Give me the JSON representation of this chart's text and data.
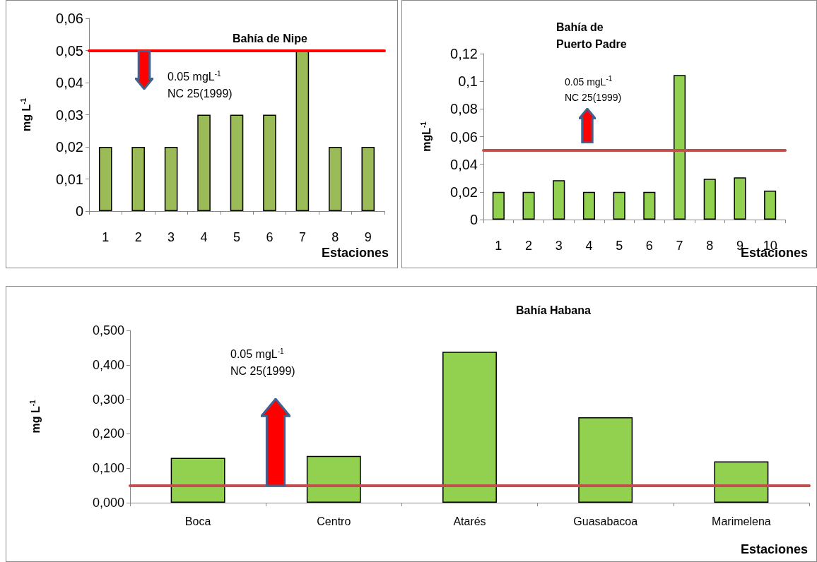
{
  "chart_data": [
    {
      "type": "bar",
      "title": "Bahía de Nipe",
      "ylabel": "mg L$^{-1}$",
      "xlabel": "Estaciones",
      "categories": [
        "1",
        "2",
        "3",
        "4",
        "5",
        "6",
        "7",
        "8",
        "9"
      ],
      "color": "#9bbb59",
      "values": [
        0.02,
        0.02,
        0.02,
        0.03,
        0.03,
        0.03,
        0.05,
        0.02,
        0.02
      ],
      "ylim": [
        0,
        0.06
      ],
      "yticks": [
        {
          "value": 0,
          "label": "0"
        },
        {
          "value": 0.01,
          "label": "0,01"
        },
        {
          "value": 0.02,
          "label": "0,02"
        },
        {
          "value": 0.03,
          "label": "0,03"
        },
        {
          "value": 0.04,
          "label": "0,04"
        },
        {
          "value": 0.05,
          "label": "0,05"
        },
        {
          "value": 0.06,
          "label": "0,06"
        }
      ],
      "ref_lines": [
        {
          "axis": "y",
          "value": 0.05,
          "color": "#ff0000"
        }
      ],
      "annotations": [
        "0.05 mgL$^{-1}$",
        "NC 25(1999)"
      ]
    },
    {
      "type": "bar",
      "title": "Bahía de Puerto Padre",
      "ylabel": "mgL$^{-1}$",
      "xlabel": "Estaciones",
      "categories": [
        "1",
        "2",
        "3",
        "4",
        "5",
        "6",
        "7",
        "8",
        "9",
        "10"
      ],
      "color": "#92d050",
      "values": [
        0.02,
        0.02,
        0.0285,
        0.02,
        0.02,
        0.02,
        0.1045,
        0.0295,
        0.0305,
        0.021
      ],
      "ylim": [
        0,
        0.12
      ],
      "yticks": [
        {
          "value": 0,
          "label": "0"
        },
        {
          "value": 0.02,
          "label": "0,02"
        },
        {
          "value": 0.04,
          "label": "0,04"
        },
        {
          "value": 0.06,
          "label": "0,06"
        },
        {
          "value": 0.08,
          "label": "0,08"
        },
        {
          "value": 0.1,
          "label": "0,1"
        },
        {
          "value": 0.12,
          "label": "0,12"
        }
      ],
      "ref_lines": [
        {
          "axis": "y",
          "value": 0.05,
          "color": "#c0504d"
        }
      ],
      "annotations": [
        "0.05 mgL$^{-1}$",
        "NC 25(1999)"
      ]
    },
    {
      "type": "bar",
      "title": "Bahía Habana",
      "ylabel": "mg L$^{-1}$",
      "xlabel": "Estaciones",
      "categories": [
        "Boca",
        "Centro",
        "Atarés",
        "Guasabacoa",
        "Marimelena"
      ],
      "color": "#92d050",
      "values": [
        0.13,
        0.136,
        0.438,
        0.248,
        0.12
      ],
      "ylim": [
        0,
        0.5
      ],
      "yticks": [
        {
          "value": 0,
          "label": "0,000"
        },
        {
          "value": 0.1,
          "label": "0,100"
        },
        {
          "value": 0.2,
          "label": "0,200"
        },
        {
          "value": 0.3,
          "label": "0,300"
        },
        {
          "value": 0.4,
          "label": "0,400"
        },
        {
          "value": 0.5,
          "label": "0,500"
        }
      ],
      "ref_lines": [
        {
          "axis": "y",
          "value": 0.05,
          "color": "#c0504d"
        }
      ],
      "annotations": [
        "0.05 mgL$^{-1}$",
        "NC 25(1999)"
      ]
    }
  ]
}
